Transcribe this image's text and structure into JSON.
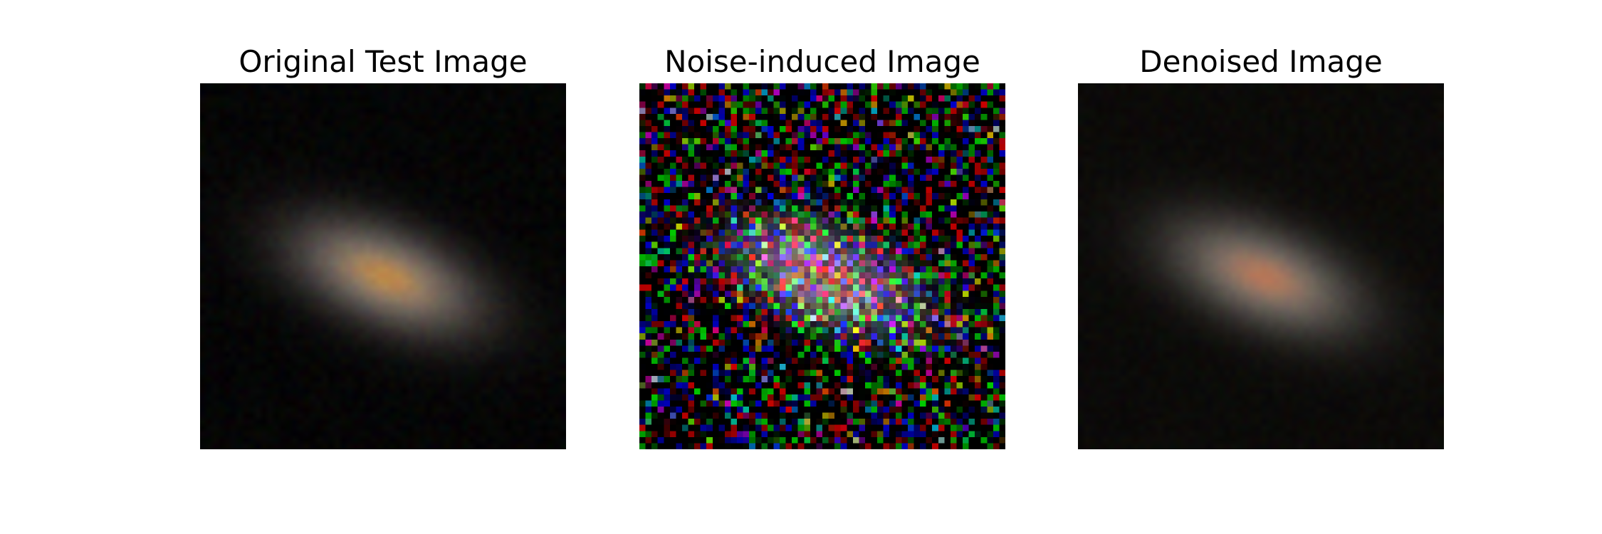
{
  "panels": [
    {
      "title": "Original Test Image",
      "image": {
        "subject": "galaxy",
        "background_color": "#050505",
        "core_color": "#e0a050",
        "halo_color": "#b8aaa2",
        "noise_level": 0.04
      }
    },
    {
      "title": "Noise-induced Image",
      "image": {
        "subject": "galaxy-noisy",
        "background_color": "#050505",
        "core_color": "#f07070",
        "halo_color": "#c8c0d8",
        "noise_level": 0.55
      }
    },
    {
      "title": "Denoised Image",
      "image": {
        "subject": "galaxy-denoised",
        "background_color": "#0b0a08",
        "core_color": "#d88a62",
        "halo_color": "#a8a098",
        "noise_level": 0.03
      }
    }
  ]
}
